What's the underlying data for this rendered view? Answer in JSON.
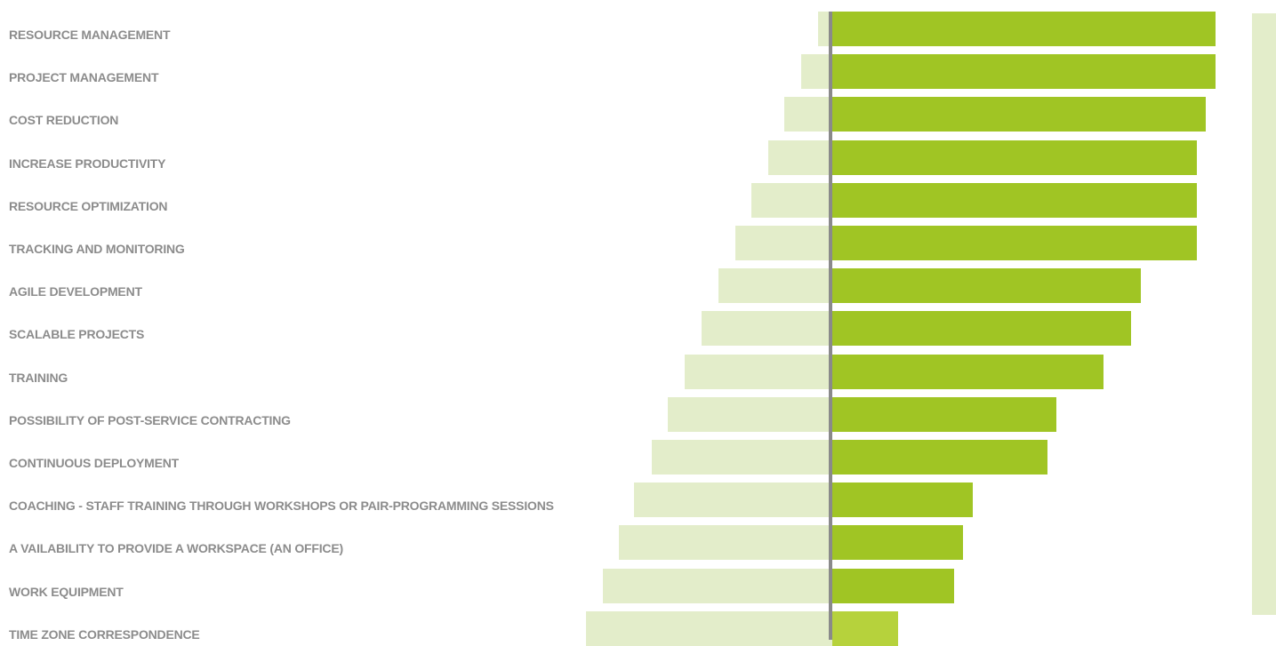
{
  "chart_data": {
    "type": "bar",
    "orientation": "horizontal-diverging",
    "categories": [
      "RESOURCE MANAGEMENT",
      "PROJECT MANAGEMENT",
      "COST REDUCTION",
      "INCREASE PRODUCTIVITY",
      "RESOURCE OPTIMIZATION",
      "TRACKING AND MONITORING",
      "AGILE DEVELOPMENT",
      "SCALABLE PROJECTS",
      "TRAINING",
      "POSSIBILITY OF POST-SERVICE CONTRACTING",
      "CONTINUOUS DEPLOYMENT",
      "COACHING - STAFF TRAINING THROUGH WORKSHOPS OR PAIR-PROGRAMMING SESSIONS",
      "A VAILABILITY TO PROVIDE A WORKSPACE (AN OFFICE)",
      "WORK EQUIPMENT",
      "TIME ZONE CORRESPONDENCE"
    ],
    "series": [
      {
        "values": [
          41,
          41,
          40,
          39,
          39,
          39,
          33,
          32,
          29,
          24,
          23,
          15,
          14,
          13,
          7
        ]
      },
      {
        "values": [
          1.5,
          3.3,
          5.1,
          6.9,
          8.7,
          10.4,
          12.2,
          14.0,
          15.8,
          17.6,
          19.3,
          21.2,
          22.9,
          24.6,
          26.4
        ]
      }
    ],
    "xlim": [
      -26.6,
      41
    ],
    "colors": {
      "right": "#a0c524",
      "right_last": "#b6d23c",
      "left": "#e3edca",
      "axis": "#8a8a8a"
    }
  }
}
